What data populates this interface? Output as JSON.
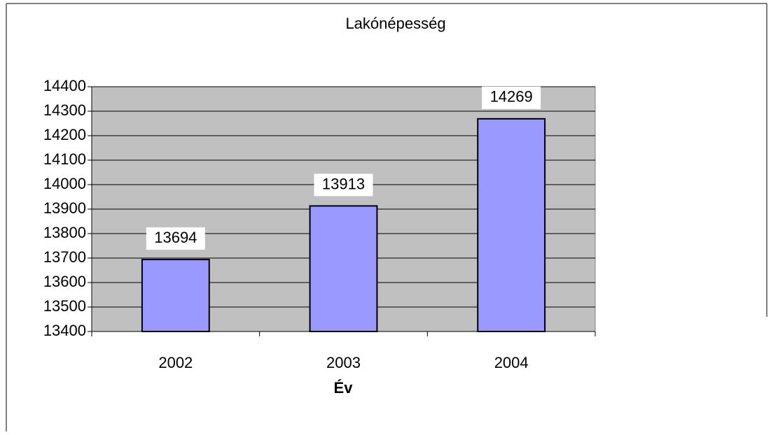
{
  "chart_data": {
    "type": "bar",
    "title": "Lakónépesség",
    "x_label": "Év",
    "categories": [
      "2002",
      "2003",
      "2004"
    ],
    "values": [
      13694,
      13913,
      14269
    ],
    "color": "#9999ff",
    "ylim": [
      13400,
      14400
    ],
    "yticks": [
      13400,
      13500,
      13600,
      13700,
      13800,
      13900,
      14000,
      14100,
      14200,
      14300,
      14400
    ],
    "grid": true
  }
}
